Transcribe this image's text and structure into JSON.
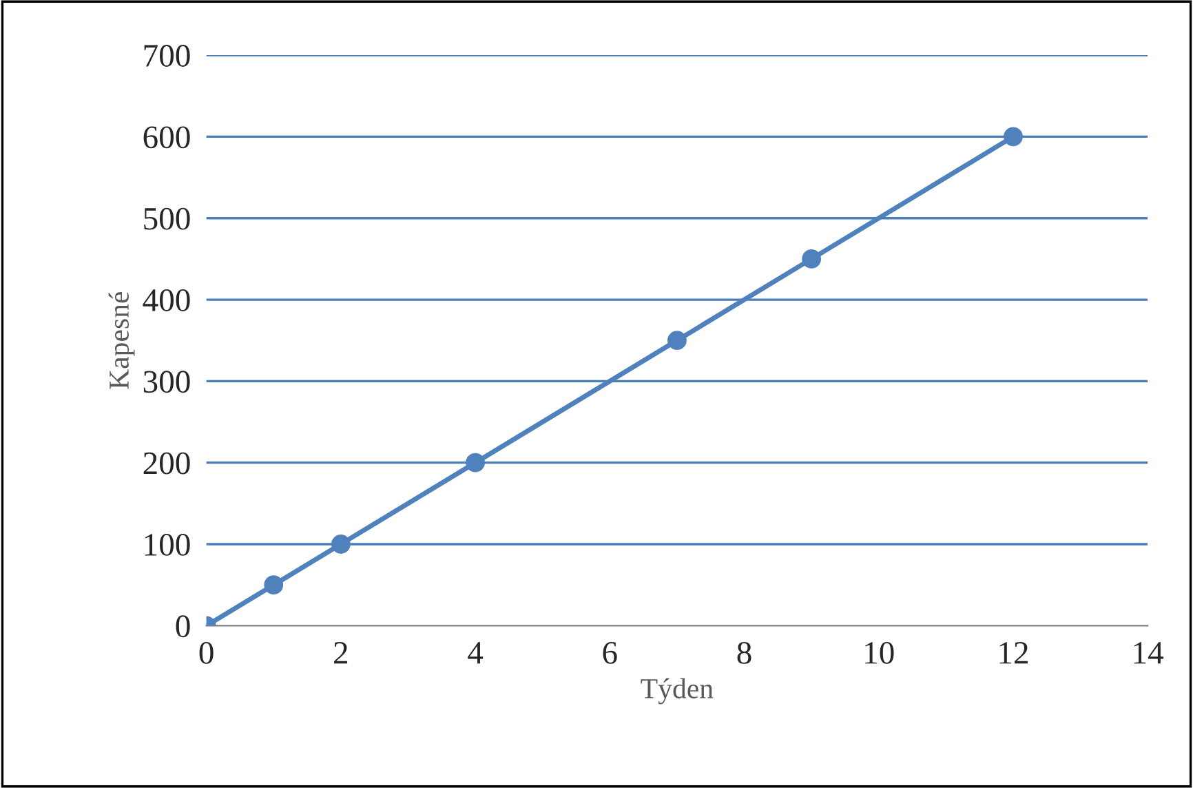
{
  "chart_data": {
    "type": "line",
    "xlabel": "Týden",
    "ylabel": "Kapesné",
    "x": [
      0,
      1,
      2,
      4,
      7,
      9,
      12
    ],
    "series": [
      {
        "color": "#4f81bd",
        "values": [
          0,
          50,
          100,
          200,
          350,
          450,
          600
        ]
      }
    ],
    "xlim": [
      0,
      14
    ],
    "xticks": [
      0,
      2,
      4,
      6,
      8,
      10,
      12,
      14
    ],
    "ylim": [
      0,
      700
    ],
    "yticks": [
      0,
      100,
      200,
      300,
      400,
      500,
      600,
      700
    ],
    "grid": "y",
    "marker": "circle",
    "line_style": "solid"
  }
}
